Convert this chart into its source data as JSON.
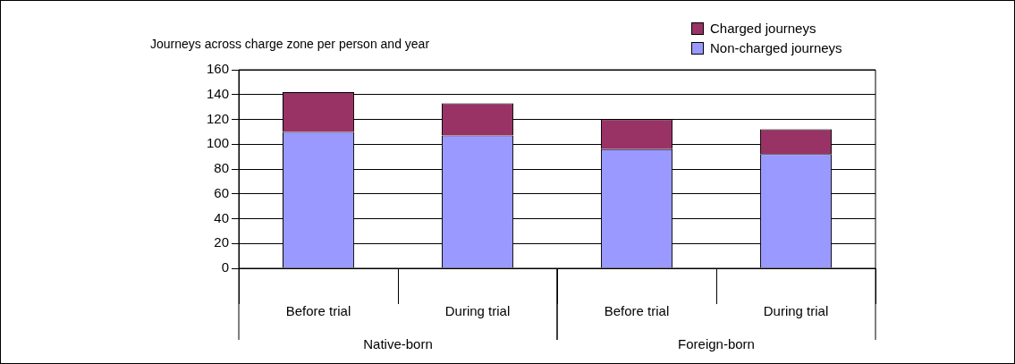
{
  "chart_data": {
    "type": "bar",
    "ylabel": "Journeys across charge zone per person and year",
    "categories": [
      "Before trial",
      "During trial",
      "Before trial",
      "During trial"
    ],
    "series": [
      {
        "name": "Non-charged journeys",
        "color": "#9999ff",
        "values": [
          110,
          107,
          96,
          92
        ]
      },
      {
        "name": "Charged journeys",
        "color": "#993366",
        "values": [
          32,
          26,
          24,
          20
        ]
      }
    ],
    "stacked": true,
    "ylim": [
      0,
      160
    ],
    "yticks": [
      0,
      20,
      40,
      60,
      80,
      100,
      120,
      140,
      160
    ],
    "grid": "y",
    "legend": "top right",
    "annotations": [
      "Native-born",
      "Foreign-born"
    ]
  }
}
